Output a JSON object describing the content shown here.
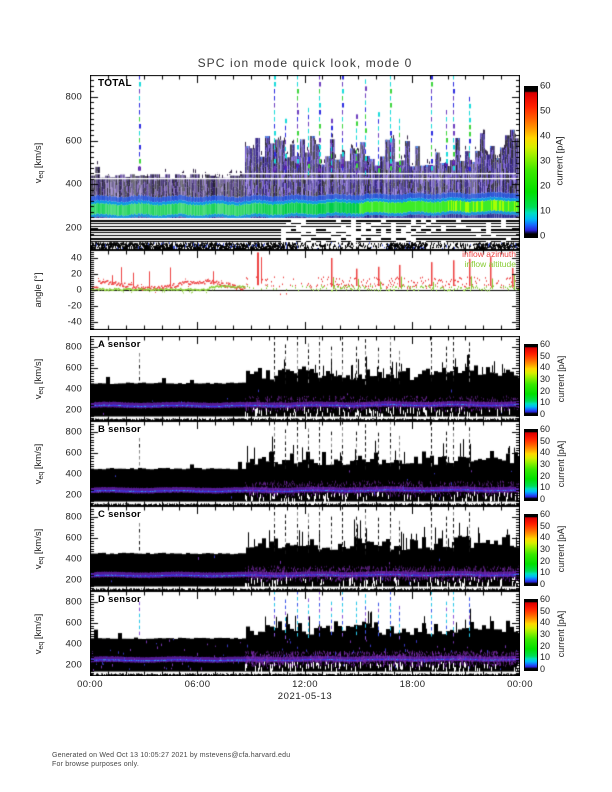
{
  "title": "SPC ion mode quick look, mode 0",
  "footer": {
    "line1": "Generated on Wed Oct 13 10:05:27 2021 by mstevens@cfa.harvard.edu",
    "line2": "For browse purposes only."
  },
  "x_axis": {
    "tick_labels": [
      "00:00",
      "06:00",
      "12:00",
      "18:00",
      "00:00"
    ],
    "tick_hours": [
      0,
      6,
      12,
      18,
      24
    ],
    "hours_span": 24,
    "date": "2021-05-13"
  },
  "colors": {
    "colormap": [
      [
        0.0,
        "#000000"
      ],
      [
        0.02,
        "#000000"
      ],
      [
        0.045,
        "#2a23d8"
      ],
      [
        0.08,
        "#1668ff"
      ],
      [
        0.12,
        "#00bdf4"
      ],
      [
        0.16,
        "#00dfc0"
      ],
      [
        0.2,
        "#00dd55"
      ],
      [
        0.3,
        "#00e000"
      ],
      [
        0.44,
        "#3ae800"
      ],
      [
        0.54,
        "#9af000"
      ],
      [
        0.6,
        "#d8ee00"
      ],
      [
        0.66,
        "#ffd800"
      ],
      [
        0.72,
        "#ff9c00"
      ],
      [
        0.79,
        "#ff5e00"
      ],
      [
        0.87,
        "#ff2000"
      ],
      [
        0.95,
        "#e00000"
      ],
      [
        0.962,
        "#cf0000"
      ],
      [
        0.972,
        "#000000"
      ],
      [
        1.0,
        "#000000"
      ]
    ],
    "azimuth": "#ee4444",
    "altitude": "#88cc33",
    "footer_text": "#454545"
  },
  "chart_data": [
    {
      "id": "total",
      "type": "heatmap",
      "panel_label": "TOTAL",
      "ylabel": {
        "pre": "v",
        "sub": "eq",
        "post": " [km/s]"
      },
      "yrange": [
        100,
        900
      ],
      "yticks": [
        200,
        400,
        600,
        800
      ],
      "ytick_minor": 25,
      "colorbar": {
        "label": "current [pA]",
        "range": [
          0,
          60
        ],
        "ticks": [
          0,
          10,
          20,
          30,
          40,
          50,
          60
        ]
      },
      "features": {
        "band_top": 440,
        "band_bottom": 170,
        "core_v": 284,
        "core_v_right": 300,
        "transition_hour": 8.6,
        "white_lines": [
          428,
          452
        ],
        "stripe_lines": [
          238,
          224,
          210,
          196,
          182,
          168,
          154,
          140
        ],
        "spikes": [
          [
            2.75,
            900
          ],
          [
            10.3,
            900
          ],
          [
            10.9,
            700
          ],
          [
            11.6,
            900
          ],
          [
            12.2,
            750
          ],
          [
            12.8,
            900
          ],
          [
            13.5,
            700
          ],
          [
            14.1,
            900
          ],
          [
            14.9,
            720
          ],
          [
            15.4,
            880
          ],
          [
            16.1,
            730
          ],
          [
            16.8,
            900
          ],
          [
            17.3,
            700
          ],
          [
            19.1,
            900
          ],
          [
            19.9,
            740
          ],
          [
            20.3,
            900
          ],
          [
            21.2,
            800
          ]
        ]
      }
    },
    {
      "id": "angles",
      "type": "scatter",
      "ylabel": {
        "pre": "angle [°]",
        "sub": "",
        "post": ""
      },
      "yrange": [
        -50,
        50
      ],
      "yticks": [
        -40,
        -20,
        0,
        20,
        40
      ],
      "ytick_minor": 2.5,
      "series": [
        {
          "name": "inflow azimuth",
          "color": "#ee4444"
        },
        {
          "name": "inflow altitude",
          "color": "#88cc33"
        }
      ],
      "features": {
        "transition_hour": 8.6,
        "big_spike_hour": 9.35,
        "spike_hours": [
          13.5,
          14.9,
          16.1,
          17.3,
          19.1,
          20.3,
          21.2,
          22.4,
          23.6
        ]
      }
    },
    {
      "id": "sensor_a",
      "type": "heatmap",
      "panel_label": "A sensor",
      "ylabel": {
        "pre": "v",
        "sub": "eq",
        "post": " [km/s]"
      },
      "yrange": [
        100,
        900
      ],
      "yticks": [
        200,
        400,
        600,
        800
      ],
      "ytick_minor": 25,
      "colorbar": {
        "label": "current [pA]",
        "range": [
          0,
          60
        ],
        "ticks": [
          0,
          10,
          20,
          30,
          40,
          50,
          60
        ]
      },
      "features": {
        "seed": 3,
        "black_top": 455,
        "band_v": 250,
        "haze": 0.45,
        "speckle": 0.03,
        "transition_hour": 8.6,
        "spike_style": "gray",
        "spikes": [
          [
            2.75,
            740
          ],
          [
            10.3,
            900
          ],
          [
            10.9,
            820
          ],
          [
            11.6,
            900
          ],
          [
            12.2,
            830
          ],
          [
            12.8,
            900
          ],
          [
            13.5,
            800
          ],
          [
            14.1,
            900
          ],
          [
            14.9,
            800
          ],
          [
            15.4,
            870
          ],
          [
            16.1,
            790
          ],
          [
            16.8,
            900
          ],
          [
            17.3,
            760
          ],
          [
            19.1,
            900
          ],
          [
            19.9,
            800
          ],
          [
            20.3,
            900
          ],
          [
            21.2,
            840
          ]
        ]
      }
    },
    {
      "id": "sensor_b",
      "type": "heatmap",
      "panel_label": "B sensor",
      "ylabel": {
        "pre": "v",
        "sub": "eq",
        "post": " [km/s]"
      },
      "yrange": [
        100,
        900
      ],
      "yticks": [
        200,
        400,
        600,
        800
      ],
      "ytick_minor": 25,
      "colorbar": {
        "label": "current [pA]",
        "range": [
          0,
          60
        ],
        "ticks": [
          0,
          10,
          20,
          30,
          40,
          50,
          60
        ]
      },
      "features": {
        "seed": 5,
        "black_top": 452,
        "band_v": 248,
        "haze": 0.5,
        "speckle": 0.03,
        "transition_hour": 8.6,
        "spike_style": "gray",
        "spikes": [
          [
            2.75,
            740
          ],
          [
            10.3,
            900
          ],
          [
            10.9,
            820
          ],
          [
            11.6,
            900
          ],
          [
            12.2,
            830
          ],
          [
            12.8,
            900
          ],
          [
            13.5,
            800
          ],
          [
            14.1,
            900
          ],
          [
            14.9,
            800
          ],
          [
            15.4,
            870
          ],
          [
            16.1,
            790
          ],
          [
            16.8,
            900
          ],
          [
            17.3,
            760
          ],
          [
            19.1,
            900
          ],
          [
            19.9,
            800
          ],
          [
            20.3,
            900
          ],
          [
            21.2,
            840
          ]
        ]
      }
    },
    {
      "id": "sensor_c",
      "type": "heatmap",
      "panel_label": "C sensor",
      "ylabel": {
        "pre": "v",
        "sub": "eq",
        "post": " [km/s]"
      },
      "yrange": [
        100,
        900
      ],
      "yticks": [
        200,
        400,
        600,
        800
      ],
      "ytick_minor": 25,
      "colorbar": {
        "label": "current [pA]",
        "range": [
          0,
          60
        ],
        "ticks": [
          0,
          10,
          20,
          30,
          40,
          50,
          60
        ]
      },
      "features": {
        "seed": 9,
        "black_top": 453,
        "band_v": 252,
        "haze": 0.75,
        "speckle": 0.05,
        "transition_hour": 8.6,
        "spike_style": "gray",
        "spikes": [
          [
            2.75,
            740
          ],
          [
            10.3,
            900
          ],
          [
            10.9,
            820
          ],
          [
            11.6,
            900
          ],
          [
            12.2,
            830
          ],
          [
            12.8,
            900
          ],
          [
            13.5,
            800
          ],
          [
            14.1,
            900
          ],
          [
            14.9,
            800
          ],
          [
            15.4,
            870
          ],
          [
            16.1,
            790
          ],
          [
            16.8,
            900
          ],
          [
            17.3,
            760
          ],
          [
            19.1,
            900
          ],
          [
            19.9,
            800
          ],
          [
            20.3,
            900
          ],
          [
            21.2,
            840
          ]
        ]
      }
    },
    {
      "id": "sensor_d",
      "type": "heatmap",
      "panel_label": "D sensor",
      "ylabel": {
        "pre": "v",
        "sub": "eq",
        "post": " [km/s]"
      },
      "yrange": [
        100,
        900
      ],
      "yticks": [
        200,
        400,
        600,
        800
      ],
      "ytick_minor": 25,
      "colorbar": {
        "label": "current [pA]",
        "range": [
          0,
          60
        ],
        "ticks": [
          0,
          10,
          20,
          30,
          40,
          50,
          60
        ]
      },
      "features": {
        "seed": 13,
        "black_top": 455,
        "band_v": 255,
        "haze": 1.0,
        "speckle": 0.3,
        "transition_hour": 8.6,
        "spike_style": "color",
        "spikes": [
          [
            2.75,
            800
          ],
          [
            10.3,
            900
          ],
          [
            10.9,
            820
          ],
          [
            11.6,
            900
          ],
          [
            12.2,
            830
          ],
          [
            12.8,
            900
          ],
          [
            13.5,
            800
          ],
          [
            14.1,
            900
          ],
          [
            14.9,
            800
          ],
          [
            15.4,
            870
          ],
          [
            16.1,
            790
          ],
          [
            16.8,
            900
          ],
          [
            17.3,
            760
          ],
          [
            19.1,
            900
          ],
          [
            19.9,
            800
          ],
          [
            20.3,
            900
          ],
          [
            21.2,
            840
          ]
        ]
      }
    }
  ]
}
